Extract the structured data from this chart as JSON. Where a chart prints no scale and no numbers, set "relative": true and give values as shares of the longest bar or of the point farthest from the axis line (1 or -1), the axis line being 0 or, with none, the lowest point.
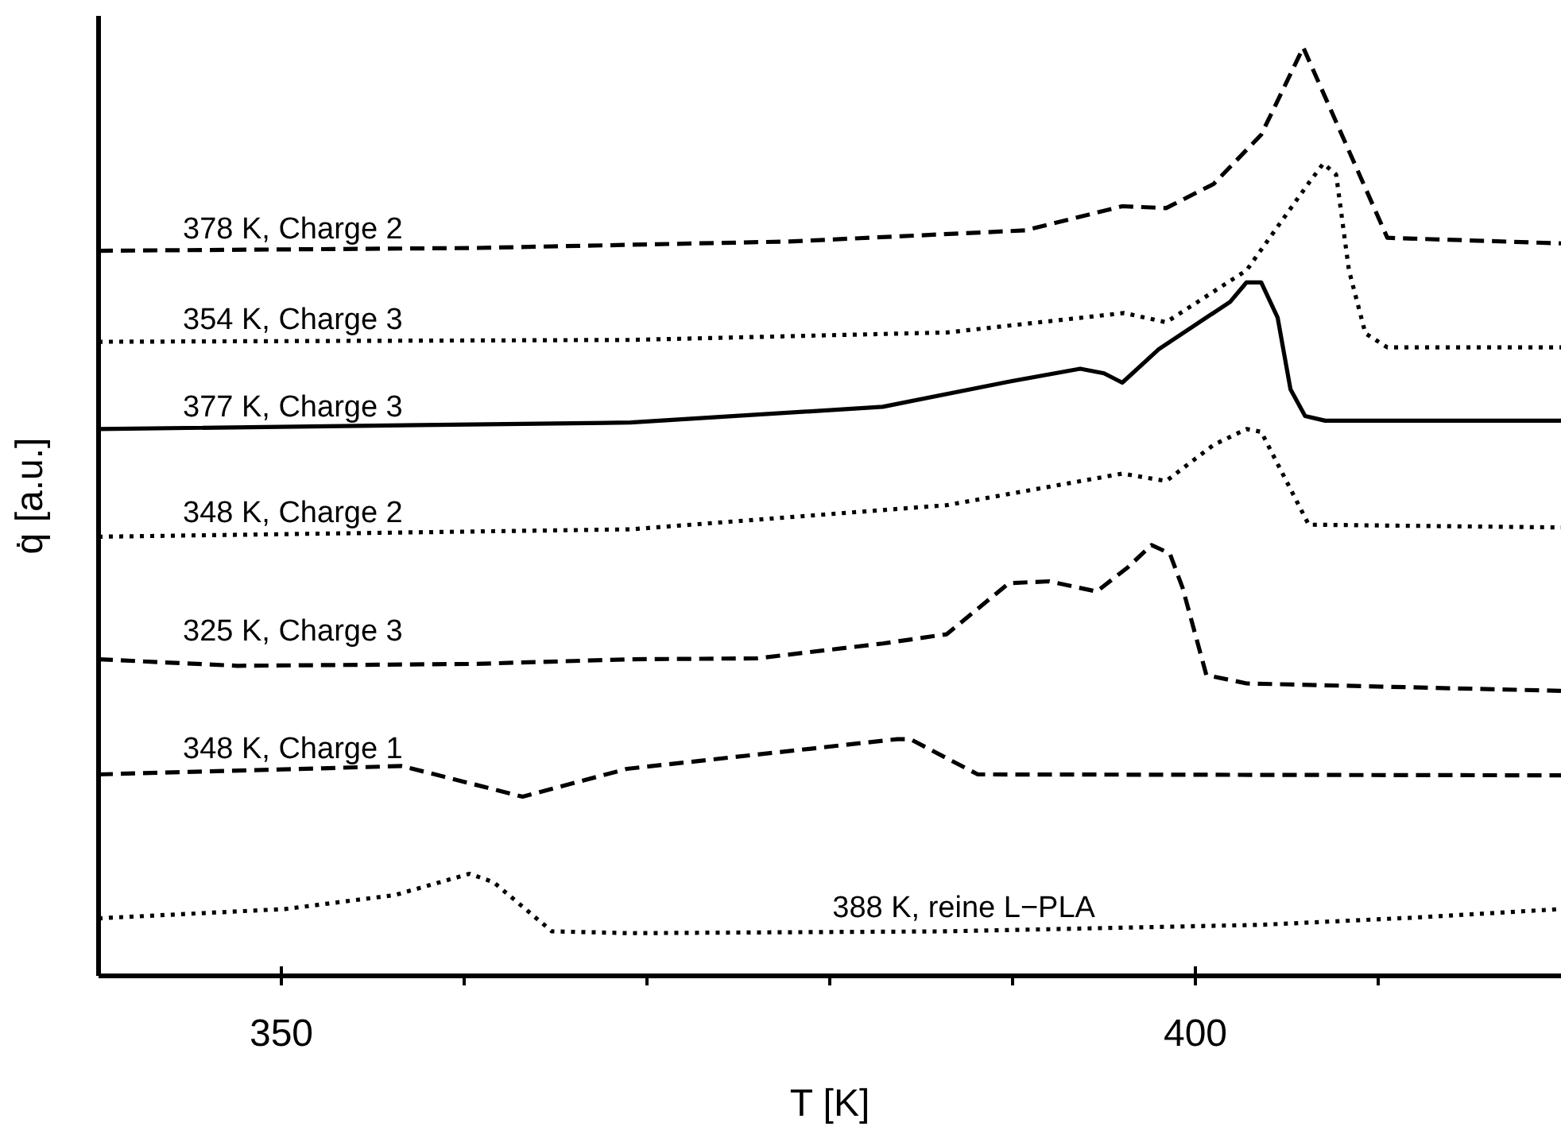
{
  "chart_data": {
    "type": "line",
    "relative": true,
    "xlabel": "T [K]",
    "ylabel": "q̇ [a.u.]",
    "xlim": [
      340,
      420
    ],
    "xticks": [
      350,
      {
        "value": 360,
        "label": null
      },
      {
        "value": 370,
        "label": null
      },
      {
        "value": 380,
        "label": null
      },
      {
        "value": 390,
        "label": null
      },
      400,
      {
        "value": 410,
        "label": null
      }
    ],
    "marker": "none",
    "series": [
      {
        "name": "378 K, Charge 2",
        "color": "#000000",
        "line_style": "dashed",
        "x": [
          340,
          360.5,
          377.8,
          390.7,
          396.0,
          398.4,
          401.0,
          403.6,
          405.9,
          410.5,
          420
        ],
        "values": [
          0.781,
          0.784,
          0.791,
          0.803,
          0.829,
          0.827,
          0.853,
          0.906,
          1,
          0.795,
          0.789
        ]
      },
      {
        "name": "354 K, Charge 3",
        "color": "#000000",
        "line_style": "dotted",
        "x": [
          340,
          369.1,
          386.4,
          396.1,
          398.4,
          402.8,
          406.2,
          407.0,
          407.7,
          408.4,
          409.3,
          410.5,
          420
        ],
        "values": [
          0.683,
          0.685,
          0.693,
          0.714,
          0.704,
          0.76,
          0.854,
          0.875,
          0.863,
          0.76,
          0.692,
          0.677,
          0.677
        ]
      },
      {
        "name": "377 K, Charge 3",
        "color": "#000000",
        "line_style": "solid",
        "x": [
          340,
          369.1,
          382.9,
          389.8,
          393.7,
          395.0,
          396.0,
          398.0,
          401.9,
          402.8,
          403.6,
          404.5,
          405.2,
          406.0,
          407.1,
          420
        ],
        "values": [
          0.589,
          0.596,
          0.613,
          0.64,
          0.654,
          0.649,
          0.639,
          0.675,
          0.726,
          0.747,
          0.747,
          0.709,
          0.632,
          0.603,
          0.598,
          0.598
        ]
      },
      {
        "name": "348 K, Charge 2",
        "color": "#000000",
        "line_style": "dotted",
        "x": [
          340,
          369.1,
          386.4,
          396.0,
          398.4,
          401.0,
          402.8,
          403.6,
          406.2,
          420
        ],
        "values": [
          0.473,
          0.481,
          0.507,
          0.541,
          0.533,
          0.572,
          0.589,
          0.586,
          0.486,
          0.483
        ]
      },
      {
        "name": "325 K, Charge 3",
        "color": "#000000",
        "line_style": "dashed",
        "x": [
          340,
          347.6,
          360.5,
          369.1,
          376.0,
          382.9,
          386.4,
          389.8,
          392.0,
          394.6,
          396.3,
          397.6,
          398.6,
          399.3,
          400.6,
          402.8,
          420
        ],
        "values": [
          0.341,
          0.334,
          0.336,
          0.341,
          0.342,
          0.358,
          0.368,
          0.423,
          0.425,
          0.414,
          0.44,
          0.464,
          0.455,
          0.418,
          0.324,
          0.315,
          0.307
        ]
      },
      {
        "name": "348 K, Charge 1",
        "color": "#000000",
        "line_style": "dashed",
        "x": [
          340,
          356.6,
          363.2,
          368.9,
          383.7,
          384.4,
          388.1,
          420
        ],
        "values": [
          0.217,
          0.226,
          0.193,
          0.223,
          0.255,
          0.255,
          0.217,
          0.216
        ]
      },
      {
        "name": "388 K, reine L−PLA",
        "color": "#000000",
        "line_style": "dotted",
        "x": [
          340,
          350.2,
          356.2,
          360.3,
          361.6,
          364.8,
          369.1,
          386.4,
          403.6,
          412.2,
          420
        ],
        "values": [
          0.062,
          0.072,
          0.087,
          0.11,
          0.101,
          0.048,
          0.046,
          0.048,
          0.055,
          0.063,
          0.072
        ]
      }
    ]
  }
}
